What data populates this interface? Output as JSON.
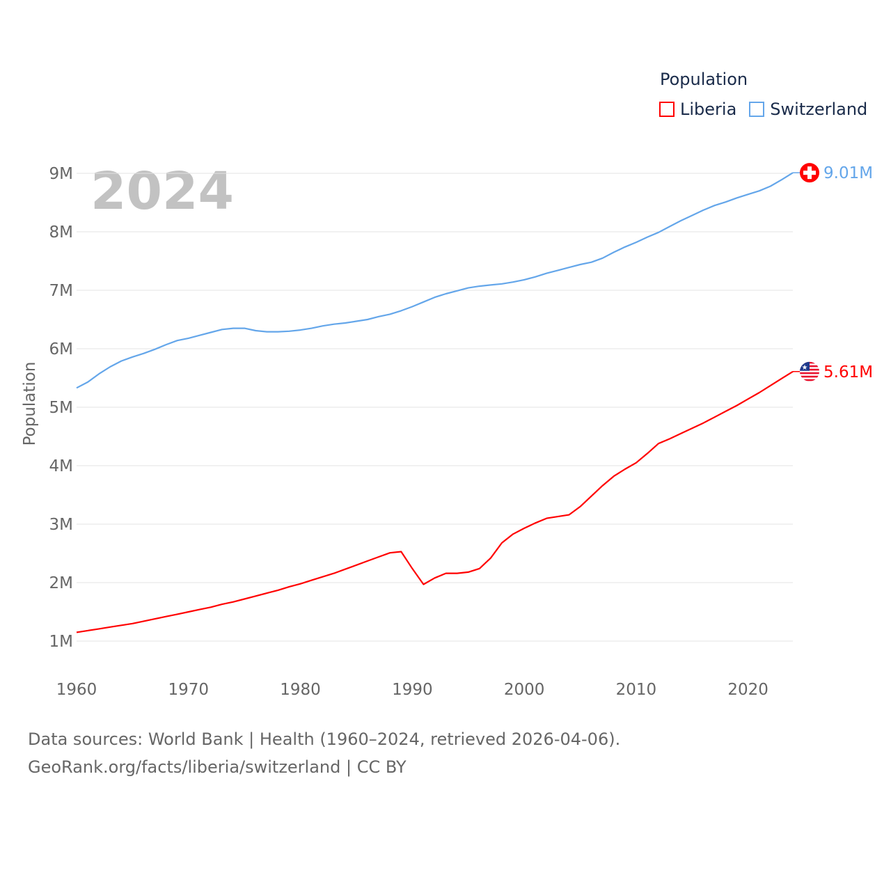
{
  "legend": {
    "title": "Population"
  },
  "footer": {
    "line1": "Data sources: World Bank | Health (1960–2024, retrieved 2026-04-06).",
    "line2": "GeoRank.org/facts/liberia/switzerland | CC BY"
  },
  "chart_data": {
    "type": "line",
    "title": "Population",
    "year_label": "2024",
    "xlabel": "",
    "ylabel": "Population",
    "xlim": [
      1960,
      2024
    ],
    "ylim": [
      1,
      9
    ],
    "y_unit": "millions",
    "grid": true,
    "legend_position": "top-right",
    "x_ticks": [
      "1960",
      "1970",
      "1980",
      "1990",
      "2000",
      "2010",
      "2020"
    ],
    "y_ticks": [
      "1M",
      "2M",
      "3M",
      "4M",
      "5M",
      "6M",
      "7M",
      "8M",
      "9M"
    ],
    "x": [
      1960,
      1961,
      1962,
      1963,
      1964,
      1965,
      1966,
      1967,
      1968,
      1969,
      1970,
      1971,
      1972,
      1973,
      1974,
      1975,
      1976,
      1977,
      1978,
      1979,
      1980,
      1981,
      1982,
      1983,
      1984,
      1985,
      1986,
      1987,
      1988,
      1989,
      1990,
      1991,
      1992,
      1993,
      1994,
      1995,
      1996,
      1997,
      1998,
      1999,
      2000,
      2001,
      2002,
      2003,
      2004,
      2005,
      2006,
      2007,
      2008,
      2009,
      2010,
      2011,
      2012,
      2013,
      2014,
      2015,
      2016,
      2017,
      2018,
      2019,
      2020,
      2021,
      2022,
      2023,
      2024
    ],
    "series": [
      {
        "name": "Liberia",
        "color": "#ff0000",
        "flag": "liberia-flag",
        "end_label": "5.61M",
        "values": [
          1.15,
          1.18,
          1.21,
          1.24,
          1.27,
          1.3,
          1.34,
          1.38,
          1.42,
          1.46,
          1.5,
          1.54,
          1.58,
          1.63,
          1.67,
          1.72,
          1.77,
          1.82,
          1.87,
          1.93,
          1.98,
          2.04,
          2.1,
          2.16,
          2.23,
          2.3,
          2.37,
          2.44,
          2.51,
          2.53,
          2.24,
          1.97,
          2.08,
          2.16,
          2.16,
          2.18,
          2.24,
          2.42,
          2.68,
          2.83,
          2.93,
          3.02,
          3.1,
          3.13,
          3.16,
          3.3,
          3.48,
          3.66,
          3.82,
          3.94,
          4.05,
          4.21,
          4.38,
          4.46,
          4.55,
          4.64,
          4.73,
          4.83,
          4.93,
          5.03,
          5.14,
          5.25,
          5.37,
          5.49,
          5.61
        ]
      },
      {
        "name": "Switzerland",
        "color": "#64a6ea",
        "flag": "switzerland-flag",
        "end_label": "9.01M",
        "values": [
          5.33,
          5.43,
          5.57,
          5.69,
          5.79,
          5.86,
          5.92,
          5.99,
          6.07,
          6.14,
          6.18,
          6.23,
          6.28,
          6.33,
          6.35,
          6.35,
          6.31,
          6.29,
          6.29,
          6.3,
          6.32,
          6.35,
          6.39,
          6.42,
          6.44,
          6.47,
          6.5,
          6.55,
          6.59,
          6.65,
          6.72,
          6.8,
          6.88,
          6.94,
          6.99,
          7.04,
          7.07,
          7.09,
          7.11,
          7.14,
          7.18,
          7.23,
          7.29,
          7.34,
          7.39,
          7.44,
          7.48,
          7.55,
          7.65,
          7.74,
          7.82,
          7.91,
          7.99,
          8.09,
          8.19,
          8.28,
          8.37,
          8.45,
          8.51,
          8.58,
          8.64,
          8.7,
          8.78,
          8.89,
          9.01
        ]
      }
    ]
  }
}
